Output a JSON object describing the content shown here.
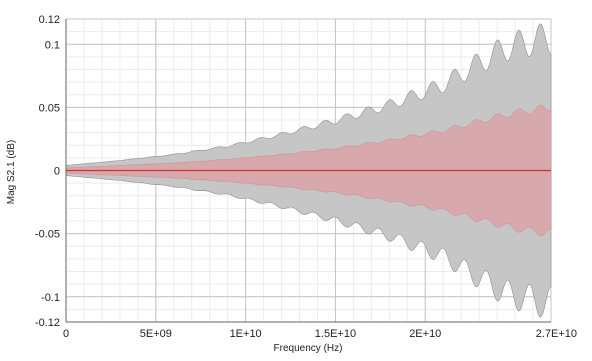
{
  "chart_data": {
    "type": "area",
    "xlabel": "Frequency (Hz)",
    "ylabel": "Mag S2.1 (dB)",
    "xlim": [
      0,
      27000000000
    ],
    "ylim": [
      -0.12,
      0.12
    ],
    "x_ticks": [
      {
        "value": 0,
        "label": "0"
      },
      {
        "value": 5000000000,
        "label": "5E+09"
      },
      {
        "value": 10000000000,
        "label": "1E+10"
      },
      {
        "value": 15000000000,
        "label": "1.5E+10"
      },
      {
        "value": 20000000000,
        "label": "2E+10"
      },
      {
        "value": 27000000000,
        "label": "2.7E+10"
      }
    ],
    "y_ticks": [
      {
        "value": 0.12,
        "label": "0.12"
      },
      {
        "value": 0.1,
        "label": "0.1"
      },
      {
        "value": 0.05,
        "label": "0.05"
      },
      {
        "value": 0,
        "label": "0"
      },
      {
        "value": -0.05,
        "label": "-0.05"
      },
      {
        "value": -0.1,
        "label": "-0.1"
      },
      {
        "value": -0.12,
        "label": "-0.12"
      }
    ],
    "grid": true,
    "series": [
      {
        "role": "outer_band",
        "color": "#c6c6c6",
        "x": [
          0,
          3000000000,
          6000000000,
          9000000000,
          12000000000,
          15000000000,
          18000000000,
          21000000000,
          23000000000,
          24500000000,
          26000000000,
          27000000000
        ],
        "upper": [
          0.004,
          0.008,
          0.013,
          0.02,
          0.03,
          0.042,
          0.056,
          0.074,
          0.094,
          0.108,
          0.115,
          0.118
        ],
        "lower": [
          -0.004,
          -0.008,
          -0.013,
          -0.02,
          -0.03,
          -0.042,
          -0.056,
          -0.074,
          -0.094,
          -0.108,
          -0.115,
          -0.118
        ]
      },
      {
        "role": "inner_band",
        "color": "#d9a5a8",
        "x": [
          0,
          3000000000,
          6000000000,
          9000000000,
          12000000000,
          15000000000,
          18000000000,
          21000000000,
          23000000000,
          24500000000,
          26000000000,
          27000000000
        ],
        "upper": [
          0.002,
          0.004,
          0.006,
          0.009,
          0.013,
          0.018,
          0.025,
          0.033,
          0.041,
          0.047,
          0.051,
          0.053
        ],
        "lower": [
          -0.002,
          -0.004,
          -0.006,
          -0.009,
          -0.013,
          -0.018,
          -0.025,
          -0.033,
          -0.041,
          -0.047,
          -0.051,
          -0.053
        ]
      },
      {
        "role": "nominal_line",
        "color": "#cc3333",
        "x": [
          0,
          27000000000
        ],
        "y": [
          0,
          0
        ]
      }
    ]
  }
}
